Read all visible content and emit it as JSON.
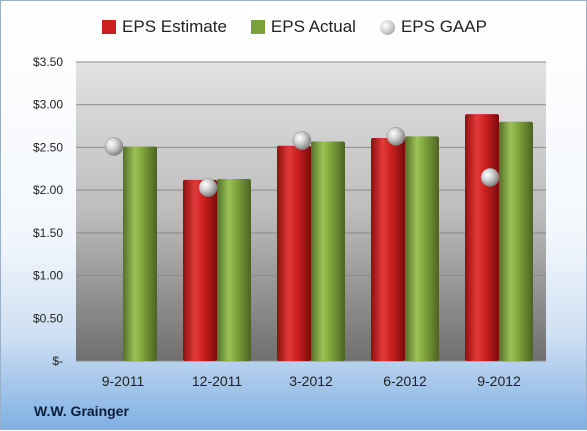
{
  "chart_data": {
    "type": "bar",
    "categories": [
      "9-2011",
      "12-2011",
      "3-2012",
      "6-2012",
      "9-2012"
    ],
    "series": [
      {
        "name": "EPS Estimate",
        "type": "bar",
        "color": "#cc1f1f",
        "values": [
          null,
          2.12,
          2.52,
          2.61,
          2.89
        ]
      },
      {
        "name": "EPS Actual",
        "type": "bar",
        "color": "#7ca03a",
        "values": [
          2.51,
          2.13,
          2.57,
          2.63,
          2.8
        ]
      },
      {
        "name": "EPS GAAP",
        "type": "scatter",
        "color": "#b8b8b8",
        "values": [
          2.51,
          2.03,
          2.58,
          2.63,
          2.15
        ]
      }
    ],
    "ylim": [
      0,
      3.5
    ],
    "yticks": [
      0,
      0.5,
      1.0,
      1.5,
      2.0,
      2.5,
      3.0,
      3.5
    ],
    "ytick_labels": [
      "$-",
      "$0.50",
      "$1.00",
      "$1.50",
      "$2.00",
      "$2.50",
      "$3.00",
      "$3.50"
    ],
    "grid": true,
    "legend_position": "top"
  },
  "footer_label": "W.W. Grainger"
}
